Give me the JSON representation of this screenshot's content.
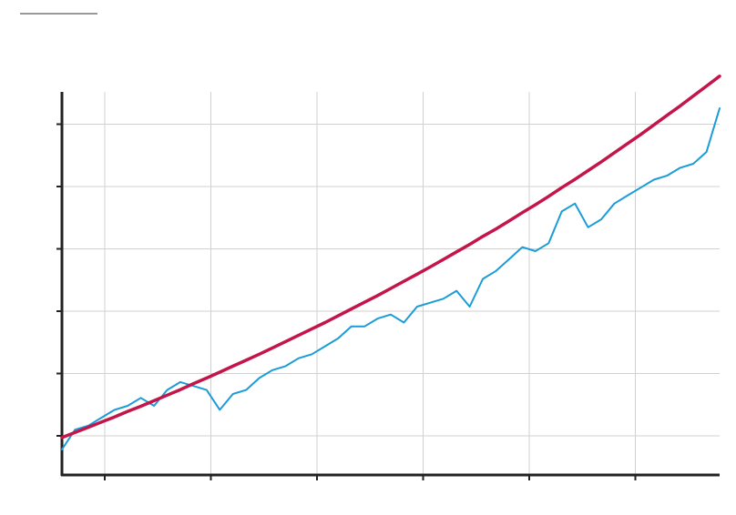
{
  "chart_data": {
    "type": "line",
    "title": "",
    "xlabel": "",
    "ylabel": "",
    "grid": true,
    "legend": "none",
    "x_tick_count": 6,
    "y_tick_count": 6,
    "xlim": [
      0,
      100
    ],
    "ylim": [
      0,
      100
    ],
    "x": [
      0,
      2,
      4,
      6,
      8,
      10,
      12,
      14,
      16,
      18,
      20,
      22,
      24,
      26,
      28,
      30,
      32,
      34,
      36,
      38,
      40,
      42,
      44,
      46,
      48,
      50,
      52,
      54,
      56,
      58,
      60,
      62,
      64,
      66,
      68,
      70,
      72,
      74,
      76,
      78,
      80,
      82,
      84,
      86,
      88,
      90,
      92,
      94,
      96,
      98,
      100
    ],
    "series": [
      {
        "values": [
          7,
          12,
          13,
          15,
          17,
          18,
          20,
          18,
          22,
          24,
          23,
          22,
          17,
          21,
          22,
          25,
          27,
          28,
          30,
          31,
          33,
          35,
          38,
          38,
          40,
          41,
          39,
          43,
          44,
          45,
          47,
          43,
          50,
          52,
          55,
          58,
          57,
          59,
          67,
          69,
          63,
          65,
          69,
          71,
          73,
          75,
          76,
          78,
          79,
          82,
          93
        ],
        "color": "#1a9cd8"
      },
      {
        "values": [
          10.0,
          11.3,
          12.6,
          13.9,
          15.2,
          16.6,
          17.9,
          19.3,
          20.7,
          22.1,
          23.6,
          25.0,
          26.5,
          28.0,
          29.5,
          31.0,
          32.6,
          34.2,
          35.8,
          37.4,
          39.0,
          40.7,
          42.4,
          44.1,
          45.8,
          47.6,
          49.4,
          51.2,
          53.0,
          54.9,
          56.8,
          58.7,
          60.7,
          62.6,
          64.6,
          66.7,
          68.7,
          70.8,
          73.0,
          75.1,
          77.3,
          79.5,
          81.8,
          84.1,
          86.4,
          88.8,
          91.2,
          93.6,
          96.1,
          98.6,
          101.1
        ],
        "color": "#c4154a"
      }
    ]
  }
}
